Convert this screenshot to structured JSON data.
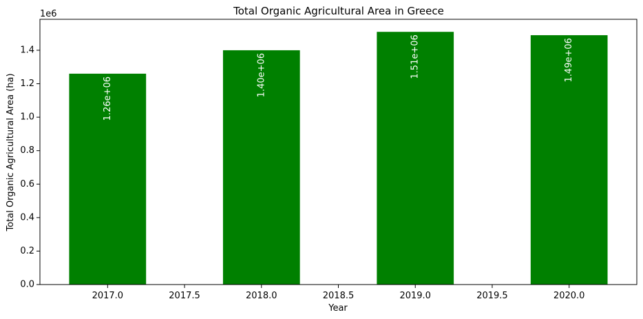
{
  "chart_data": {
    "type": "bar",
    "title": "Total Organic Agricultural Area in Greece",
    "xlabel": "Year",
    "ylabel": "Total Organic Agricultural Area (ha)",
    "y_offset_label": "1e6",
    "x": [
      2017,
      2018,
      2019,
      2020
    ],
    "values": [
      1260000,
      1400000,
      1510000,
      1490000
    ],
    "data_labels": [
      "1.26e+06",
      "1.40e+06",
      "1.51e+06",
      "1.49e+06"
    ],
    "bar_width": 0.5,
    "xlim": [
      2016.56,
      2020.44
    ],
    "ylim": [
      0,
      1585000
    ],
    "x_ticks": [
      2017.0,
      2017.5,
      2018.0,
      2018.5,
      2019.0,
      2019.5,
      2020.0
    ],
    "x_tick_labels": [
      "2017.0",
      "2017.5",
      "2018.0",
      "2018.5",
      "2019.0",
      "2019.5",
      "2020.0"
    ],
    "y_ticks": [
      0,
      200000,
      400000,
      600000,
      800000,
      1000000,
      1200000,
      1400000
    ],
    "y_tick_labels": [
      "0.0",
      "0.2",
      "0.4",
      "0.6",
      "0.8",
      "1.0",
      "1.2",
      "1.4"
    ],
    "grid": false,
    "bar_color": "#008000"
  }
}
